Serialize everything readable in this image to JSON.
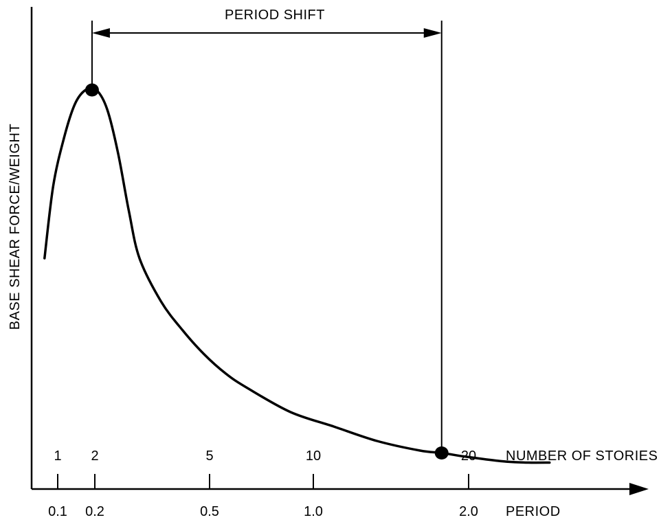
{
  "chart_data": {
    "type": "line",
    "ylabel": "BASE SHEAR FORCE/WEIGHT",
    "x_axis_label": "PERIOD",
    "x_ticks": [
      "0.1",
      "0.2",
      "0.5",
      "1.0",
      "2.0"
    ],
    "secondary_axis_label": "NUMBER OF STORIES",
    "secondary_ticks": [
      "1",
      "2",
      "5",
      "10",
      "20"
    ],
    "series": [
      {
        "x": [
          0.06,
          0.1,
          0.15,
          0.2,
          0.25,
          0.3,
          0.35,
          0.4,
          0.45,
          0.5,
          0.6,
          0.7,
          0.8,
          0.9,
          1.0,
          1.2,
          1.4,
          1.6,
          1.8,
          1.9,
          2.0,
          2.1,
          2.2,
          2.3,
          2.4
        ],
        "y": [
          0.48,
          0.63,
          0.73,
          0.8,
          0.83,
          0.83,
          0.79,
          0.7,
          0.58,
          0.48,
          0.39,
          0.33,
          0.28,
          0.24,
          0.21,
          0.16,
          0.13,
          0.1,
          0.08,
          0.075,
          0.068,
          0.062,
          0.057,
          0.055,
          0.055
        ]
      }
    ],
    "points": [
      {
        "x": 0.28,
        "y": 0.83
      },
      {
        "x": 1.9,
        "y": 0.075
      }
    ],
    "annotation": "PERIOD SHIFT",
    "xlim": [
      0.0,
      2.7
    ],
    "ylim": [
      0.0,
      1.0
    ],
    "grid": false
  },
  "colors": {
    "ink": "#000000",
    "background": "#ffffff"
  }
}
